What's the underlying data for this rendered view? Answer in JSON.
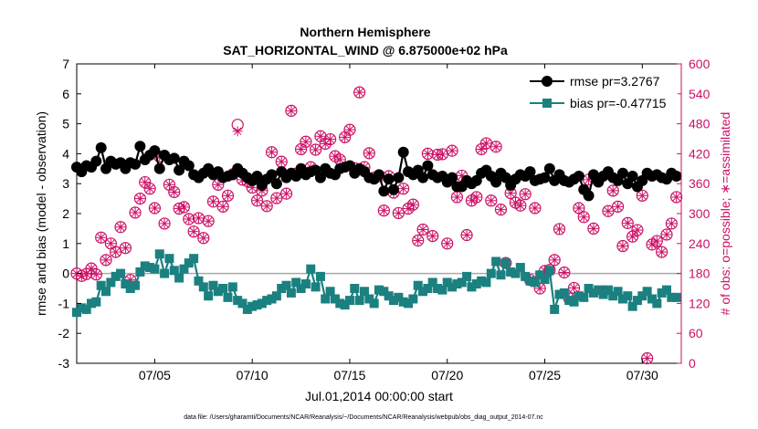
{
  "chart_data": {
    "type": "line",
    "title": "Northern Hemisphere",
    "subtitle": "SAT_HORIZONTAL_WIND @ 6.875000e+02 hPa",
    "xlabel": "Jul.01,2014 00:00:00 start",
    "ylabel": "rmse and bias (model - observation)",
    "y2label": "# of obs: o=possible; ∗=assimilated",
    "footnote": "data file: /Users/gharamti/Documents/NCAR/Reanalysis/~/Documents/NCAR/Reanalysis/webpub/obs_diag_output_2014-07.nc",
    "xlim": [
      1,
      32
    ],
    "ylim": [
      -3,
      7
    ],
    "y2lim": [
      0,
      600
    ],
    "x_ticks": [
      {
        "value": 5,
        "label": "07/05"
      },
      {
        "value": 10,
        "label": "07/10"
      },
      {
        "value": 15,
        "label": "07/15"
      },
      {
        "value": 20,
        "label": "07/20"
      },
      {
        "value": 25,
        "label": "07/25"
      },
      {
        "value": 30,
        "label": "07/30"
      }
    ],
    "y_ticks": [
      -3,
      -2,
      -1,
      0,
      1,
      2,
      3,
      4,
      5,
      6,
      7
    ],
    "y2_ticks": [
      0,
      60,
      120,
      180,
      240,
      300,
      360,
      420,
      480,
      540,
      600
    ],
    "legend_position": "top-right",
    "x": [
      1.0,
      1.25,
      1.5,
      1.75,
      2.0,
      2.25,
      2.5,
      2.75,
      3.0,
      3.25,
      3.5,
      3.75,
      4.0,
      4.25,
      4.5,
      4.75,
      5.0,
      5.25,
      5.5,
      5.75,
      6.0,
      6.25,
      6.5,
      6.75,
      7.0,
      7.25,
      7.5,
      7.75,
      8.0,
      8.25,
      8.5,
      8.75,
      9.0,
      9.25,
      9.5,
      9.75,
      10.0,
      10.25,
      10.5,
      10.75,
      11.0,
      11.25,
      11.5,
      11.75,
      12.0,
      12.25,
      12.5,
      12.75,
      13.0,
      13.25,
      13.5,
      13.75,
      14.0,
      14.25,
      14.5,
      14.75,
      15.0,
      15.25,
      15.5,
      15.75,
      16.0,
      16.25,
      16.5,
      16.75,
      17.0,
      17.25,
      17.5,
      17.75,
      18.0,
      18.25,
      18.5,
      18.75,
      19.0,
      19.25,
      19.5,
      19.75,
      20.0,
      20.25,
      20.5,
      20.75,
      21.0,
      21.25,
      21.5,
      21.75,
      22.0,
      22.25,
      22.5,
      22.75,
      23.0,
      23.25,
      23.5,
      23.75,
      24.0,
      24.25,
      24.5,
      24.75,
      25.0,
      25.25,
      25.5,
      25.75,
      26.0,
      26.25,
      26.5,
      26.75,
      27.0,
      27.25,
      27.5,
      27.75,
      28.0,
      28.25,
      28.5,
      28.75,
      29.0,
      29.25,
      29.5,
      29.75,
      30.0,
      30.25,
      30.5,
      30.75,
      31.0,
      31.25,
      31.5,
      31.75
    ],
    "series": [
      {
        "name": "rmse pr=3.2767",
        "color": "#000000",
        "marker": "circle",
        "values": [
          3.55,
          3.4,
          3.6,
          3.55,
          3.75,
          4.2,
          3.5,
          3.75,
          3.65,
          3.7,
          3.5,
          3.7,
          3.65,
          4.25,
          3.8,
          3.95,
          4.1,
          3.5,
          3.95,
          3.8,
          3.85,
          3.45,
          3.75,
          3.6,
          3.3,
          3.2,
          3.35,
          3.5,
          3.3,
          3.4,
          3.2,
          3.25,
          3.3,
          3.5,
          3.35,
          3.2,
          3.1,
          3.25,
          2.95,
          3.15,
          3.3,
          3.0,
          3.4,
          3.2,
          3.35,
          3.25,
          3.5,
          3.3,
          3.4,
          3.45,
          3.2,
          3.5,
          3.35,
          3.3,
          3.5,
          3.55,
          3.6,
          3.35,
          3.5,
          3.4,
          3.2,
          3.15,
          3.3,
          2.75,
          3.15,
          2.8,
          3.2,
          4.05,
          3.4,
          3.3,
          3.45,
          3.2,
          3.6,
          3.3,
          3.2,
          3.25,
          3.05,
          3.2,
          2.9,
          2.9,
          3.1,
          3.0,
          3.1,
          3.35,
          3.45,
          3.25,
          3.05,
          3.35,
          3.2,
          2.95,
          3.15,
          3.3,
          3.25,
          3.4,
          3.1,
          3.15,
          3.2,
          3.5,
          3.1,
          3.3,
          3.1,
          3.05,
          3.15,
          3.25,
          2.8,
          2.6,
          3.3,
          3.05,
          3.25,
          3.4,
          3.2,
          3.1,
          3.35,
          3.0,
          3.25,
          2.9,
          3.1,
          3.35,
          3.25,
          3.3,
          3.2,
          3.15,
          3.35,
          3.25
        ]
      },
      {
        "name": "bias pr=-0.47715",
        "color": "#1b8080",
        "marker": "square",
        "values": [
          -1.3,
          -1.15,
          -1.2,
          -1.0,
          -0.95,
          -0.4,
          -0.6,
          -0.3,
          -0.1,
          0.0,
          -0.35,
          -0.5,
          -0.4,
          0.05,
          0.25,
          0.2,
          0.15,
          0.65,
          0.0,
          0.5,
          0.1,
          -0.15,
          0.15,
          0.35,
          0.5,
          -0.25,
          -0.45,
          -0.75,
          -0.4,
          -0.6,
          -0.5,
          -0.8,
          -0.45,
          -0.9,
          -1.0,
          -1.2,
          -1.1,
          -1.05,
          -1.0,
          -0.9,
          -0.85,
          -0.75,
          -0.5,
          -0.4,
          -0.65,
          -0.3,
          -0.5,
          -0.35,
          0.15,
          -0.45,
          -0.1,
          -0.85,
          -0.6,
          -0.85,
          -1.0,
          -1.05,
          -0.9,
          -0.5,
          -0.9,
          -0.6,
          -0.85,
          -1.0,
          -0.55,
          -0.6,
          -0.75,
          -0.9,
          -0.8,
          -0.95,
          -1.0,
          -0.85,
          -0.4,
          -0.6,
          -0.5,
          -0.3,
          -0.5,
          -0.55,
          -0.3,
          -0.45,
          -0.35,
          -0.3,
          -0.1,
          -0.45,
          -0.35,
          -0.25,
          -0.3,
          0.0,
          0.4,
          -0.05,
          0.35,
          0.05,
          0.0,
          0.2,
          -0.1,
          -0.25,
          -0.3,
          -0.05,
          -0.2,
          0.1,
          -1.2,
          -0.7,
          -0.65,
          -0.9,
          -0.95,
          -0.75,
          -0.8,
          -0.5,
          -0.65,
          -0.55,
          -0.7,
          -0.55,
          -0.75,
          -0.6,
          -0.85,
          -0.75,
          -1.1,
          -0.9,
          -0.75,
          -0.6,
          -0.85,
          -1.0,
          -0.65,
          -0.55,
          -0.8,
          -0.8
        ]
      }
    ],
    "obs_series": [
      {
        "name": "possible",
        "color": "#cc1166",
        "marker": "circle",
        "values": [
          180,
          175,
          179,
          190,
          178,
          252,
          207,
          240,
          223,
          273,
          231,
          167,
          302,
          330,
          363,
          350,
          311,
          414,
          280,
          358,
          343,
          310,
          313,
          289,
          264,
          291,
          251,
          285,
          324,
          358,
          314,
          336,
          379,
          478,
          368,
          365,
          352,
          326,
          346,
          315,
          423,
          331,
          404,
          340,
          506,
          380,
          429,
          444,
          393,
          428,
          455,
          440,
          449,
          415,
          408,
          453,
          468,
          391,
          543,
          393,
          421,
          372,
          375,
          306,
          375,
          342,
          301,
          350,
          310,
          318,
          246,
          268,
          420,
          255,
          418,
          419,
          240,
          426,
          333,
          376,
          257,
          326,
          333,
          429,
          441,
          326,
          434,
          308,
          201,
          341,
          322,
          316,
          339,
          167,
          311,
          150,
          185,
          187,
          207,
          269,
          182,
          130,
          151,
          311,
          293,
          368,
          270,
          367,
          144,
          305,
          346,
          314,
          235,
          281,
          254,
          267,
          336,
          10,
          238,
          245,
          223,
          258,
          280,
          333,
          315
        ]
      },
      {
        "name": "assimilated",
        "color": "#cc1166",
        "marker": "asterisk",
        "values": [
          180,
          175,
          179,
          190,
          178,
          252,
          207,
          240,
          223,
          273,
          231,
          167,
          302,
          330,
          363,
          350,
          311,
          414,
          280,
          358,
          343,
          310,
          313,
          289,
          264,
          291,
          251,
          285,
          324,
          358,
          314,
          336,
          379,
          465,
          368,
          365,
          352,
          326,
          346,
          315,
          423,
          331,
          404,
          340,
          506,
          380,
          429,
          444,
          393,
          428,
          455,
          440,
          449,
          415,
          408,
          453,
          468,
          391,
          543,
          393,
          421,
          372,
          375,
          306,
          375,
          342,
          301,
          350,
          310,
          318,
          246,
          268,
          420,
          255,
          418,
          419,
          240,
          426,
          333,
          376,
          257,
          326,
          333,
          429,
          441,
          326,
          434,
          308,
          201,
          341,
          322,
          316,
          339,
          167,
          311,
          150,
          185,
          187,
          207,
          269,
          182,
          130,
          151,
          311,
          293,
          368,
          270,
          367,
          144,
          305,
          346,
          314,
          235,
          281,
          254,
          267,
          336,
          10,
          238,
          245,
          223,
          258,
          280,
          333,
          315
        ]
      }
    ],
    "zero_line_color": "#aaaaaa",
    "grid": false
  }
}
